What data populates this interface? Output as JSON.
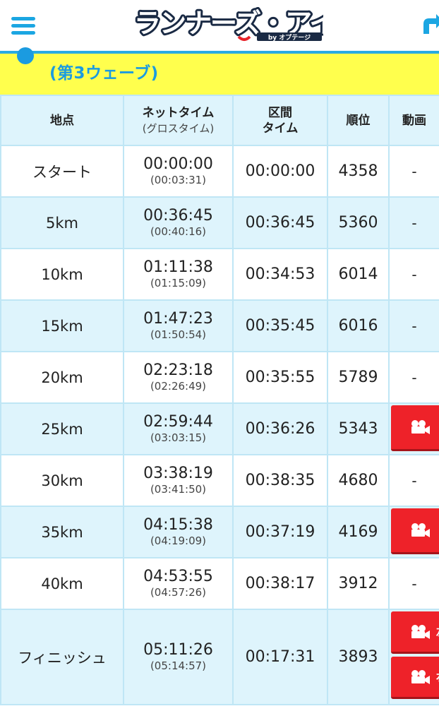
{
  "header": {
    "logo_main": "ランナーズ・アイ",
    "logo_sub": "by オプテージ"
  },
  "wave": {
    "title": "(第3ウェーブ)"
  },
  "table": {
    "columns": {
      "point": "地点",
      "net": "ネットタイム",
      "gross": "(グロスタイム)",
      "split_line1": "区間",
      "split_line2": "タイム",
      "rank": "順位",
      "video": "動画"
    },
    "rows": [
      {
        "point": "スタート",
        "net": "00:00:00",
        "gross": "(00:03:31)",
        "split": "00:00:00",
        "rank": "4358",
        "video": "-"
      },
      {
        "point": "5km",
        "net": "00:36:45",
        "gross": "(00:40:16)",
        "split": "00:36:45",
        "rank": "5360",
        "video": "-"
      },
      {
        "point": "10km",
        "net": "01:11:38",
        "gross": "(01:15:09)",
        "split": "00:34:53",
        "rank": "6014",
        "video": "-"
      },
      {
        "point": "15km",
        "net": "01:47:23",
        "gross": "(01:50:54)",
        "split": "00:35:45",
        "rank": "6016",
        "video": "-"
      },
      {
        "point": "20km",
        "net": "02:23:18",
        "gross": "(02:26:49)",
        "split": "00:35:55",
        "rank": "5789",
        "video": "-"
      },
      {
        "point": "25km",
        "net": "02:59:44",
        "gross": "(03:03:15)",
        "split": "00:36:26",
        "rank": "5343",
        "video": ""
      },
      {
        "point": "30km",
        "net": "03:38:19",
        "gross": "(03:41:50)",
        "split": "00:38:35",
        "rank": "4680",
        "video": "-"
      },
      {
        "point": "35km",
        "net": "04:15:38",
        "gross": "(04:19:09)",
        "split": "00:37:19",
        "rank": "4169",
        "video": ""
      },
      {
        "point": "40km",
        "net": "04:53:55",
        "gross": "(04:57:26)",
        "split": "00:38:17",
        "rank": "3912",
        "video": "-"
      },
      {
        "point": "フィニッシュ",
        "net": "05:11:26",
        "gross": "(05:14:57)",
        "split": "00:17:31",
        "rank": "3893",
        "video_left": "左",
        "video_right": "右"
      }
    ]
  },
  "colors": {
    "accent": "#1b9be0",
    "banner": "#ffff4d",
    "row_alt": "#def4fc",
    "video_button": "#ee2229"
  },
  "icons": {
    "menu": "hamburger-menu-icon",
    "share": "share-arrow-icon",
    "video": "movie-camera-icon"
  }
}
